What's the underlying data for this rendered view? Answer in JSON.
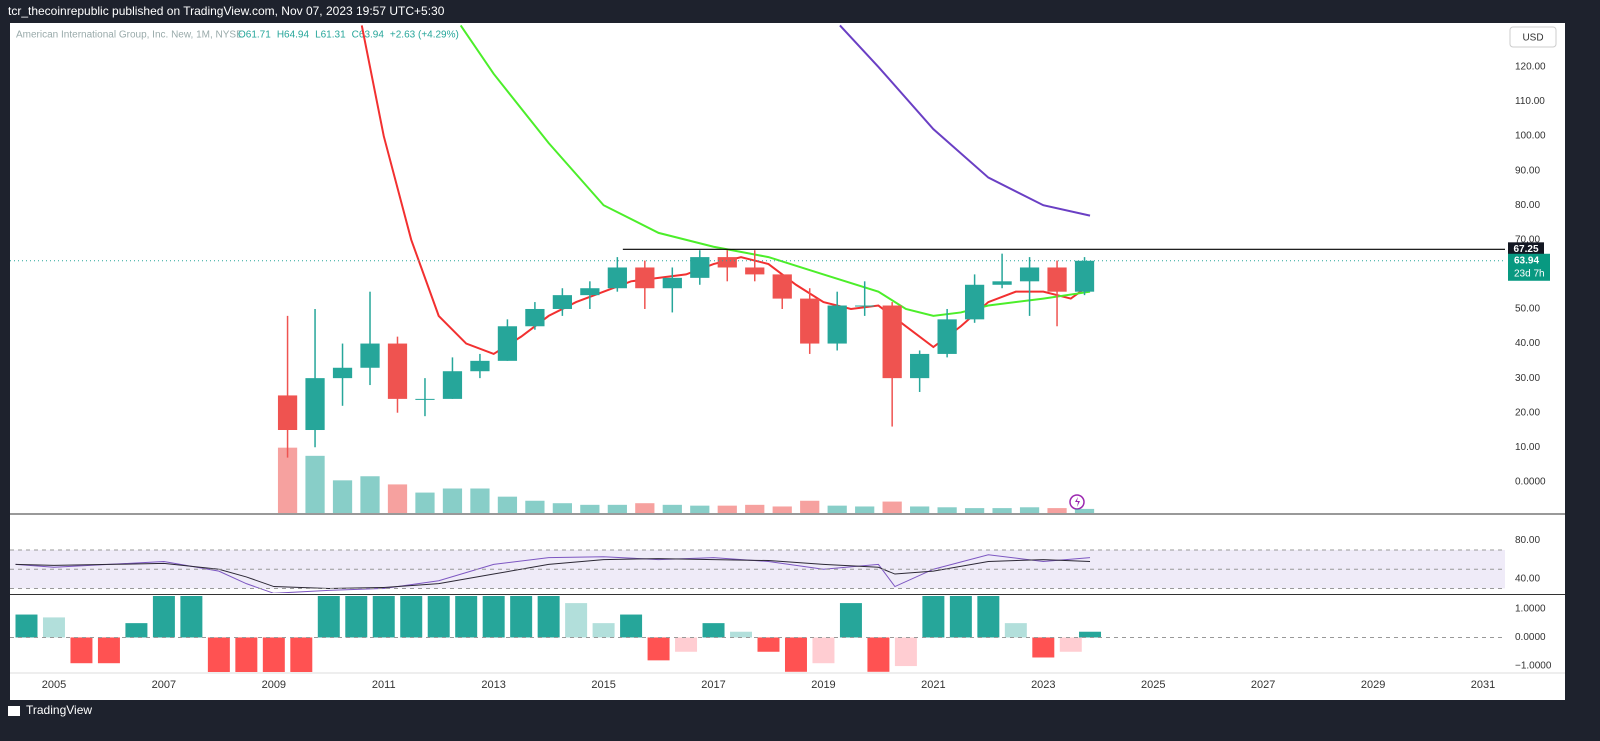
{
  "header": {
    "text": "tcr_thecoinrepublic published on TradingView.com, Nov 07, 2023 19:57 UTC+5:30"
  },
  "legend": {
    "symbol": "American International Group, Inc. New, 1M, NYSE",
    "items": [
      "O61.71",
      "H64.94",
      "L61.31",
      "C63.94",
      "+2.63 (+4.29%)"
    ]
  },
  "currency": "USD",
  "footer": {
    "brand": "TradingView"
  },
  "chart_data": [
    {
      "type": "candlestick",
      "x": [
        2009.25,
        2009.75,
        2010.25,
        2010.75,
        2011.25,
        2011.75,
        2012.25,
        2012.75,
        2013.25,
        2013.75,
        2014.25,
        2014.75,
        2015.25,
        2015.75,
        2016.25,
        2016.75,
        2017.25,
        2017.75,
        2018.25,
        2018.75,
        2019.25,
        2019.75,
        2020.25,
        2020.75,
        2021.25,
        2021.75,
        2022.25,
        2022.75,
        2023.25,
        2023.75
      ],
      "open": [
        25,
        15,
        30,
        33,
        40,
        24,
        24,
        32,
        35,
        45,
        50,
        54,
        56,
        62,
        56,
        59,
        65,
        62,
        60,
        53,
        40,
        51,
        51,
        30,
        37,
        47,
        57,
        58,
        62,
        55
      ],
      "high": [
        48,
        50,
        40,
        55,
        42,
        30,
        36,
        37,
        47,
        52,
        56,
        58,
        65,
        64,
        62,
        67,
        67,
        67,
        60,
        56,
        55,
        58,
        52,
        38,
        50,
        60,
        66,
        65,
        64,
        65
      ],
      "low": [
        7,
        10,
        22,
        28,
        20,
        19,
        24,
        30,
        35,
        44,
        48,
        50,
        55,
        50,
        49,
        57,
        58,
        58,
        50,
        37,
        38,
        48,
        16,
        26,
        36,
        46,
        56,
        48,
        45,
        54
      ],
      "close": [
        15,
        30,
        33,
        40,
        24,
        24,
        32,
        35,
        45,
        50,
        54,
        56,
        62,
        56,
        59,
        65,
        62,
        60,
        53,
        40,
        51,
        51,
        30,
        37,
        47,
        57,
        58,
        62,
        55,
        63.94
      ],
      "volume": [
        80,
        70,
        40,
        45,
        35,
        25,
        30,
        30,
        20,
        15,
        12,
        10,
        10,
        12,
        10,
        9,
        9,
        10,
        8,
        15,
        9,
        8,
        14,
        8,
        7,
        6,
        6,
        7,
        6,
        5
      ],
      "vlim": [
        0,
        600
      ],
      "up_color": "#26a69a",
      "down_color": "#ef5350",
      "series": [
        {
          "color": "#f23030",
          "x": [
            2010.6,
            2011,
            2011.5,
            2012,
            2012.5,
            2013,
            2013.5,
            2014,
            2014.5,
            2015,
            2015.5,
            2016,
            2016.5,
            2017,
            2017.5,
            2018,
            2018.5,
            2019,
            2019.5,
            2020,
            2020.5,
            2021,
            2021.5,
            2022,
            2022.5,
            2023,
            2023.5,
            2023.85
          ],
          "values": [
            132,
            100,
            70,
            48,
            40,
            37,
            42,
            48,
            52,
            55,
            58,
            59,
            60,
            63,
            65,
            63,
            57,
            52,
            50,
            51,
            45,
            39,
            45,
            52,
            55,
            55,
            53,
            57
          ]
        },
        {
          "color": "#4cee2a",
          "x": [
            2012.4,
            2013,
            2014,
            2015,
            2016,
            2017,
            2018,
            2019,
            2020,
            2020.5,
            2021,
            2021.5,
            2022,
            2023,
            2023.85
          ],
          "values": [
            132,
            118,
            98,
            80,
            72,
            68,
            65,
            60,
            55,
            50,
            48,
            49,
            51,
            53,
            55
          ]
        },
        {
          "color": "#6a3fc4",
          "x": [
            2019.3,
            2020,
            2021,
            2022,
            2023,
            2023.85
          ],
          "values": [
            132,
            120,
            102,
            88,
            80,
            77
          ]
        }
      ],
      "resistance": {
        "x": 2015.35,
        "value": 67.25
      },
      "last": {
        "value": 63.94,
        "countdown": "23d 7h"
      },
      "xlim": [
        2004.2,
        2031.4
      ],
      "ylim": [
        -9,
        132.7
      ],
      "xticks": [
        2005,
        2007,
        2009,
        2011,
        2013,
        2015,
        2017,
        2019,
        2021,
        2023,
        2025,
        2027,
        2029,
        2031
      ],
      "yticks": [
        {
          "value": 0,
          "label": "0.0000"
        },
        {
          "value": 10,
          "label": "10.00"
        },
        {
          "value": 20,
          "label": "20.00"
        },
        {
          "value": 30,
          "label": "30.00"
        },
        {
          "value": 40,
          "label": "40.00"
        },
        {
          "value": 50,
          "label": "50.00"
        },
        {
          "value": 60,
          "label": "60.00"
        },
        {
          "value": 70,
          "label": "70.00"
        },
        {
          "value": 80,
          "label": "80.00"
        },
        {
          "value": 90,
          "label": "90.00"
        },
        {
          "value": 100,
          "label": "100.00"
        },
        {
          "value": 110,
          "label": "110.00"
        },
        {
          "value": 120,
          "label": "120.00"
        }
      ]
    },
    {
      "type": "rsi",
      "x": [
        2004.3,
        2005,
        2006,
        2007,
        2008,
        2008.5,
        2009,
        2010,
        2011,
        2012,
        2013,
        2014,
        2015,
        2016,
        2017,
        2018,
        2019,
        2020,
        2020.3,
        2021,
        2022,
        2023,
        2023.85
      ],
      "series": [
        {
          "color": "#7e57c2",
          "values": [
            55,
            52,
            55,
            58,
            48,
            35,
            25,
            28,
            30,
            38,
            55,
            62,
            63,
            60,
            62,
            58,
            50,
            55,
            32,
            50,
            65,
            58,
            62
          ]
        },
        {
          "color": "#222222",
          "values": [
            55,
            54,
            55,
            56,
            50,
            42,
            32,
            30,
            31,
            35,
            45,
            55,
            60,
            61,
            60,
            59,
            55,
            52,
            45,
            48,
            58,
            60,
            58
          ]
        }
      ],
      "band": [
        30,
        70
      ],
      "levels": [
        30,
        50,
        70
      ],
      "ylim": [
        25.3,
        106.3
      ],
      "yticks": [
        {
          "value": 80,
          "label": "80.00"
        },
        {
          "value": 40,
          "label": "40.00"
        }
      ]
    },
    {
      "type": "histogram",
      "x": [
        2004.5,
        2005,
        2005.5,
        2006,
        2006.5,
        2007,
        2007.5,
        2008,
        2008.5,
        2009,
        2009.5,
        2010,
        2010.5,
        2011,
        2011.5,
        2012,
        2012.5,
        2013,
        2013.5,
        2014,
        2014.5,
        2015,
        2015.5,
        2016,
        2016.5,
        2017,
        2017.5,
        2018,
        2018.5,
        2019,
        2019.5,
        2020,
        2020.5,
        2021,
        2021.5,
        2022,
        2022.5,
        2023,
        2023.5,
        2023.85
      ],
      "values": [
        0.8,
        0.7,
        -0.9,
        -0.9,
        0.5,
        1.5,
        1.5,
        -1.5,
        -1.5,
        -1.5,
        -1.5,
        1.5,
        1.5,
        1.5,
        1.5,
        1.5,
        1.5,
        1.5,
        1.5,
        1.5,
        1.2,
        0.5,
        0.8,
        -0.8,
        -0.5,
        0.5,
        0.2,
        -0.5,
        -1.2,
        -0.9,
        1.2,
        -1.2,
        -1.0,
        1.5,
        1.5,
        1.5,
        0.5,
        -0.7,
        -0.5,
        0.2
      ],
      "colors": {
        "up_strong": "#26a69a",
        "up_weak": "#b2dfdb",
        "down_strong": "#ff5252",
        "down_weak": "#ffcdd2"
      },
      "ylim": [
        -1.207,
        1.448
      ],
      "yticks": [
        {
          "value": 1,
          "label": "1.0000"
        },
        {
          "value": 0,
          "label": "0.0000"
        },
        {
          "value": -1,
          "label": "−1.0000"
        }
      ]
    }
  ]
}
